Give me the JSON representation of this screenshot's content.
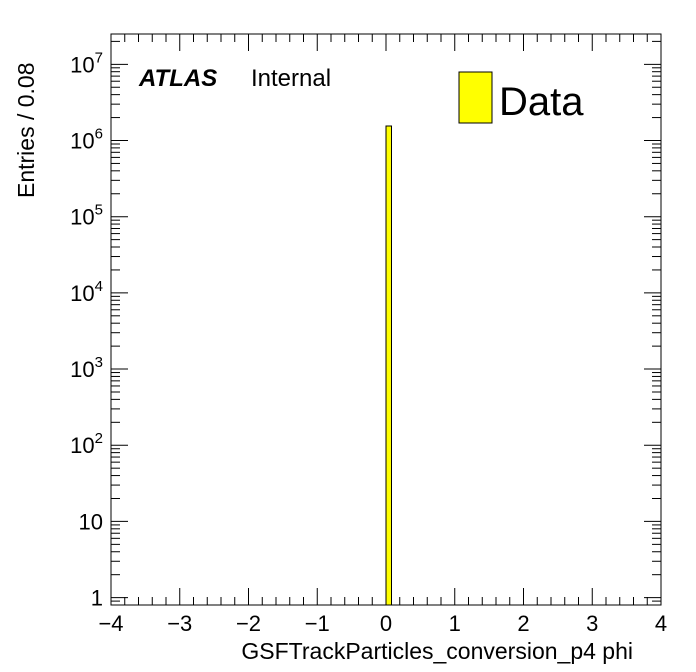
{
  "chart_data": {
    "type": "bar",
    "xlabel": "GSFTrackParticles_conversion_p4 phi",
    "ylabel": "Entries / 0.08",
    "xlim": [
      -4,
      4
    ],
    "ylim": [
      0.8,
      25000000
    ],
    "yscale": "log",
    "bin_width": 0.08,
    "x_ticks": [
      -4,
      -3,
      -2,
      -1,
      0,
      1,
      2,
      3,
      4
    ],
    "x_tick_labels": [
      "−4",
      "−3",
      "−2",
      "−1",
      "0",
      "1",
      "2",
      "3",
      "4"
    ],
    "y_ticks": [
      {
        "value": 1,
        "base": "1",
        "exp": ""
      },
      {
        "value": 10,
        "base": "10",
        "exp": ""
      },
      {
        "value": 100,
        "base": "10",
        "exp": "2"
      },
      {
        "value": 1000,
        "base": "10",
        "exp": "3"
      },
      {
        "value": 10000,
        "base": "10",
        "exp": "4"
      },
      {
        "value": 100000,
        "base": "10",
        "exp": "5"
      },
      {
        "value": 1000000,
        "base": "10",
        "exp": "6"
      },
      {
        "value": 10000000,
        "base": "10",
        "exp": "7"
      }
    ],
    "series": [
      {
        "name": "Data",
        "color": "#ffff00",
        "bins": [
          {
            "x_low": 0.0,
            "x_high": 0.08,
            "value": 1550000
          }
        ]
      }
    ],
    "legend": {
      "position": "top-right",
      "entries": [
        "Data"
      ]
    },
    "grid": false
  },
  "labels": {
    "atlas": "ATLAS",
    "status": "Internal"
  }
}
